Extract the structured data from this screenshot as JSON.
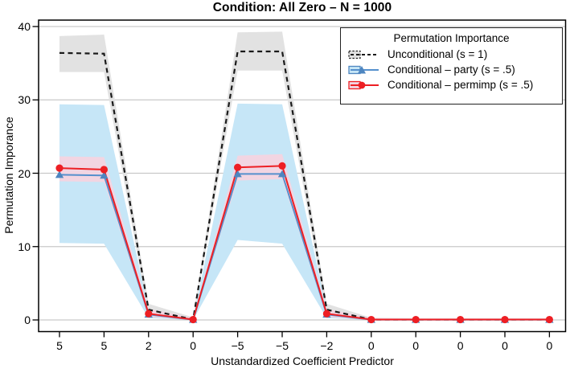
{
  "figure": {
    "title": "Condition: All Zero – N = 1000"
  },
  "chart_data": {
    "type": "line",
    "title": "Condition: All Zero – N = 1000",
    "xlabel": "Unstandardized Coefficient Predictor",
    "ylabel": "Permutation Imporance",
    "x_tick_labels": [
      "5",
      "5",
      "2",
      "0",
      "−5",
      "−5",
      "−2",
      "0",
      "0",
      "0",
      "0",
      "0"
    ],
    "y_ticks": [
      0,
      10,
      20,
      30,
      40
    ],
    "ylim": [
      0,
      40
    ],
    "grid": "horizontal",
    "legend": {
      "title": "Permutation Importance",
      "position": "top-right"
    },
    "colors": {
      "frame": "#000000",
      "gridline": "#c9c9c9",
      "unconditional_line": "#1a1a1a",
      "unconditional_band": "#e2e2e2",
      "party_line": "#5590cd",
      "party_marker": "#4e86c0",
      "party_band": "#c6e6f7",
      "permimp_line": "#ed1f24",
      "permimp_band": "#f2d5e2"
    },
    "series": [
      {
        "key": "unconditional",
        "name": "Unconditional (s = 1)",
        "line_style": "dashed",
        "color": "#1a1a1a",
        "band_color": "#e2e2e2",
        "marker": "none",
        "values": [
          36.4,
          36.3,
          1.4,
          0.05,
          36.6,
          36.6,
          1.4,
          0.05,
          0.05,
          0.05,
          0.05,
          0.05
        ],
        "band_low": [
          33.8,
          33.8,
          0.6,
          0,
          34.0,
          34.0,
          0.6,
          0,
          0,
          0,
          0,
          0
        ],
        "band_high": [
          38.7,
          38.9,
          2.2,
          0.35,
          39.2,
          39.3,
          2.2,
          0.3,
          0.25,
          0.25,
          0.25,
          0.25
        ]
      },
      {
        "key": "party",
        "name": "Conditional – party (s = .5)",
        "line_style": "solid",
        "color": "#5590cd",
        "band_color": "#c6e6f7",
        "marker": "triangle",
        "marker_color": "#4e86c0",
        "values": [
          19.8,
          19.7,
          0.75,
          0.04,
          19.9,
          19.9,
          0.75,
          0.04,
          0.04,
          0.04,
          0.04,
          0.04
        ],
        "band_low": [
          10.5,
          10.4,
          0.25,
          0,
          10.9,
          10.4,
          0.25,
          0,
          0,
          0,
          0,
          0
        ],
        "band_high": [
          29.4,
          29.3,
          1.4,
          0.25,
          29.5,
          29.4,
          1.4,
          0.2,
          0.15,
          0.15,
          0.15,
          0.15
        ]
      },
      {
        "key": "permimp",
        "name": "Conditional – permimp (s = .5)",
        "line_style": "solid",
        "color": "#ed1f24",
        "band_color": "#f2d5e2",
        "marker": "circle",
        "marker_color": "#ed1f24",
        "values": [
          20.7,
          20.5,
          0.85,
          0.05,
          20.8,
          21.0,
          0.85,
          0.05,
          0.05,
          0.05,
          0.05,
          0.05
        ],
        "band_low": [
          18.9,
          18.8,
          0.4,
          0,
          19.0,
          19.2,
          0.4,
          0,
          0,
          0,
          0,
          0
        ],
        "band_high": [
          22.3,
          22.2,
          1.5,
          0.3,
          22.4,
          22.6,
          1.5,
          0.25,
          0.2,
          0.2,
          0.2,
          0.2
        ]
      }
    ]
  }
}
